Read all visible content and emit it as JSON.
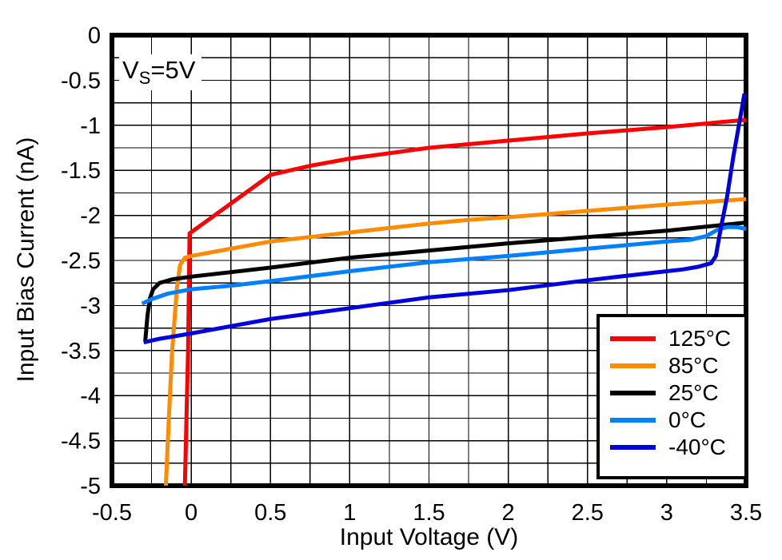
{
  "chart_data": {
    "type": "line",
    "title": "",
    "xlabel": "Input Voltage (V)",
    "ylabel": "Input Bias Current (nA)",
    "annotation": {
      "prefix": "V",
      "subscript": "S",
      "suffix": "=5V"
    },
    "xlim": [
      -0.5,
      3.5
    ],
    "ylim": [
      -5,
      0
    ],
    "grid": true,
    "grid_step": 0.25,
    "legend_position": "lower right",
    "background_color": "#ffffff",
    "frame_color": "#000000",
    "grid_color": "#000000",
    "x_ticks": [
      {
        "value": -0.5,
        "label": "-0.5"
      },
      {
        "value": 0,
        "label": "0"
      },
      {
        "value": 0.5,
        "label": "0.5"
      },
      {
        "value": 1,
        "label": "1"
      },
      {
        "value": 1.5,
        "label": "1.5"
      },
      {
        "value": 2,
        "label": "2"
      },
      {
        "value": 2.5,
        "label": "2.5"
      },
      {
        "value": 3,
        "label": "3"
      },
      {
        "value": 3.5,
        "label": "3.5"
      }
    ],
    "y_ticks": [
      {
        "value": 0,
        "label": "0"
      },
      {
        "value": -0.5,
        "label": "-0.5"
      },
      {
        "value": -1,
        "label": "-1"
      },
      {
        "value": -1.5,
        "label": "-1.5"
      },
      {
        "value": -2,
        "label": "-2"
      },
      {
        "value": -2.5,
        "label": "-2.5"
      },
      {
        "value": -3,
        "label": "-3"
      },
      {
        "value": -3.5,
        "label": "-3.5"
      },
      {
        "value": -4,
        "label": "-4"
      },
      {
        "value": -4.5,
        "label": "-4.5"
      },
      {
        "value": -5,
        "label": "-5"
      }
    ],
    "series": [
      {
        "name": "125°C",
        "color": "#ff0000",
        "points": [
          [
            -0.04,
            -5
          ],
          [
            -0.02,
            -3.5
          ],
          [
            -0.01,
            -2.2
          ],
          [
            0.5,
            -1.55
          ],
          [
            0.75,
            -1.45
          ],
          [
            1,
            -1.37
          ],
          [
            1.25,
            -1.31
          ],
          [
            1.5,
            -1.25
          ],
          [
            1.75,
            -1.21
          ],
          [
            2,
            -1.17
          ],
          [
            2.5,
            -1.09
          ],
          [
            3,
            -1.02
          ],
          [
            3.5,
            -0.94
          ]
        ]
      },
      {
        "name": "85°C",
        "color": "#ff8c00",
        "points": [
          [
            -0.16,
            -5
          ],
          [
            -0.14,
            -4.2
          ],
          [
            -0.12,
            -3.5
          ],
          [
            -0.09,
            -2.8
          ],
          [
            -0.07,
            -2.55
          ],
          [
            -0.04,
            -2.47
          ],
          [
            0,
            -2.45
          ],
          [
            0.25,
            -2.37
          ],
          [
            0.5,
            -2.29
          ],
          [
            0.75,
            -2.24
          ],
          [
            1,
            -2.19
          ],
          [
            1.25,
            -2.14
          ],
          [
            1.5,
            -2.09
          ],
          [
            1.75,
            -2.05
          ],
          [
            2,
            -2.02
          ],
          [
            2.5,
            -1.95
          ],
          [
            3,
            -1.88
          ],
          [
            3.5,
            -1.82
          ]
        ]
      },
      {
        "name": "25°C",
        "color": "#000000",
        "points": [
          [
            -0.29,
            -3.4
          ],
          [
            -0.275,
            -3.1
          ],
          [
            -0.26,
            -2.92
          ],
          [
            -0.24,
            -2.82
          ],
          [
            -0.2,
            -2.75
          ],
          [
            -0.12,
            -2.71
          ],
          [
            0,
            -2.68
          ],
          [
            0.25,
            -2.63
          ],
          [
            0.5,
            -2.58
          ],
          [
            1,
            -2.47
          ],
          [
            1.5,
            -2.39
          ],
          [
            2,
            -2.31
          ],
          [
            2.5,
            -2.24
          ],
          [
            3,
            -2.17
          ],
          [
            3.5,
            -2.08
          ]
        ]
      },
      {
        "name": "0°C",
        "color": "#0080ff",
        "points": [
          [
            -0.31,
            -2.98
          ],
          [
            -0.25,
            -2.93
          ],
          [
            -0.15,
            -2.87
          ],
          [
            0,
            -2.82
          ],
          [
            0.25,
            -2.78
          ],
          [
            0.5,
            -2.73
          ],
          [
            1,
            -2.62
          ],
          [
            1.5,
            -2.52
          ],
          [
            2,
            -2.45
          ],
          [
            2.5,
            -2.37
          ],
          [
            3,
            -2.29
          ],
          [
            3.15,
            -2.27
          ],
          [
            3.25,
            -2.23
          ],
          [
            3.32,
            -2.16
          ],
          [
            3.38,
            -2.13
          ],
          [
            3.44,
            -2.13
          ],
          [
            3.5,
            -2.15
          ]
        ]
      },
      {
        "name": "-40°C",
        "color": "#0000dd",
        "points": [
          [
            -0.3,
            -3.41
          ],
          [
            -0.2,
            -3.37
          ],
          [
            -0.1,
            -3.34
          ],
          [
            0,
            -3.31
          ],
          [
            0.5,
            -3.15
          ],
          [
            1,
            -3.03
          ],
          [
            1.5,
            -2.91
          ],
          [
            2,
            -2.83
          ],
          [
            2.5,
            -2.72
          ],
          [
            3,
            -2.62
          ],
          [
            3.1,
            -2.6
          ],
          [
            3.2,
            -2.57
          ],
          [
            3.28,
            -2.53
          ],
          [
            3.31,
            -2.45
          ],
          [
            3.34,
            -2.15
          ],
          [
            3.38,
            -1.8
          ],
          [
            3.42,
            -1.35
          ],
          [
            3.46,
            -0.95
          ],
          [
            3.49,
            -0.65
          ]
        ]
      }
    ]
  }
}
